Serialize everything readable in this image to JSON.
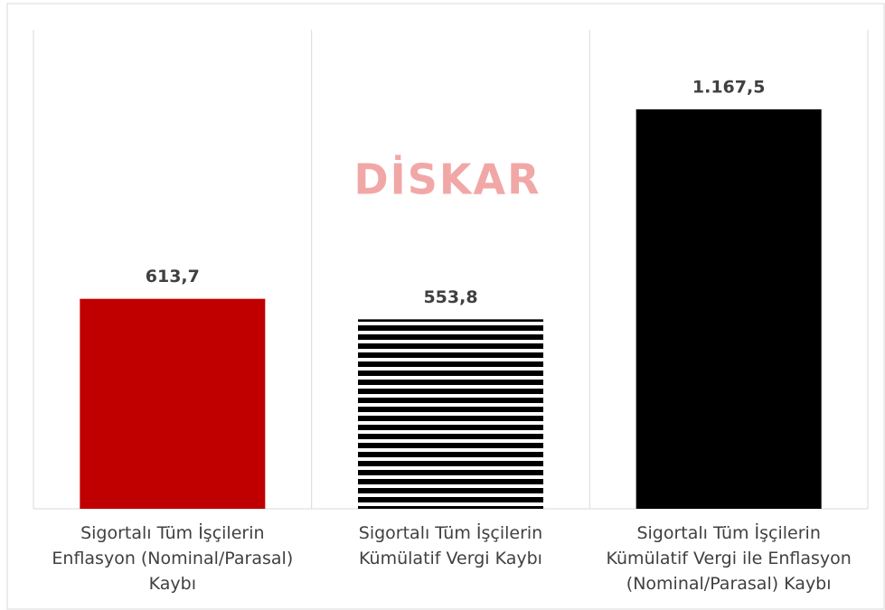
{
  "chart_data": {
    "type": "bar",
    "watermark": "DİSKAR",
    "categories": [
      "Sigortalı Tüm İşçilerin\nEnflasyon (Nominal/Parasal)\nKaybı",
      "Sigortalı Tüm İşçilerin\nKümülatif Vergi Kaybı",
      "Sigortalı Tüm İşçilerin\nKümülatif Vergi ile Enflasyon\n(Nominal/Parasal) Kaybı"
    ],
    "values": [
      613.7,
      553.8,
      1167.5
    ],
    "value_labels": [
      "613,7",
      "553,8",
      "1.167,5"
    ],
    "colors": [
      "#c00000",
      "#000000",
      "#000000"
    ],
    "patterns": [
      null,
      "horizontal-stripes",
      null
    ],
    "ylim": [
      0,
      1400
    ]
  }
}
